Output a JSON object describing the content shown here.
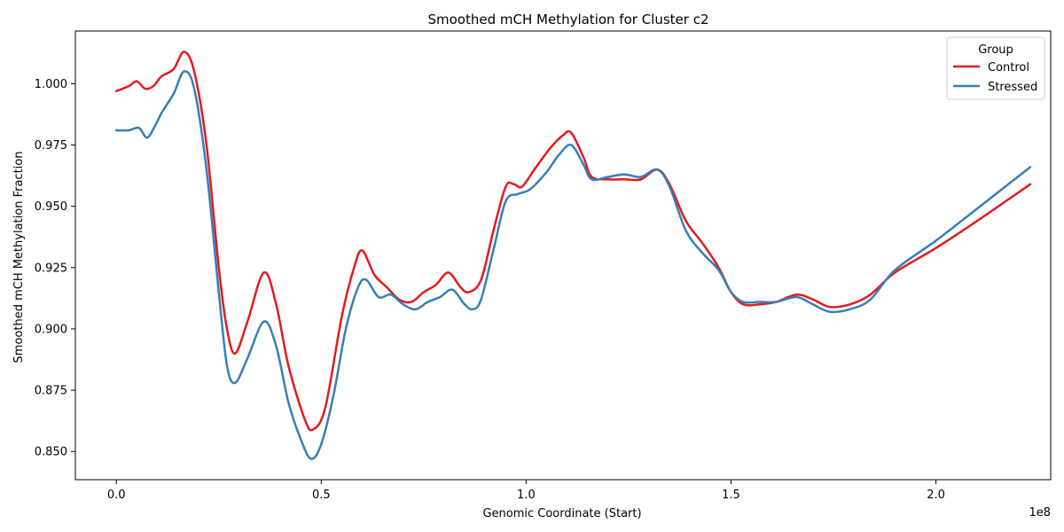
{
  "chart_data": {
    "type": "line",
    "title": "Smoothed mCH Methylation for Cluster c2",
    "xlabel": "Genomic Coordinate (Start)",
    "ylabel": "Smoothed mCH Methylation Fraction",
    "x_offset_label": "1e8",
    "xlim": [
      -0.1,
      2.28
    ],
    "ylim": [
      0.8385,
      1.0215
    ],
    "x_ticks": [
      0.0,
      0.5,
      1.0,
      1.5,
      2.0
    ],
    "x_tick_labels": [
      "0.0",
      "0.5",
      "1.0",
      "1.5",
      "2.0"
    ],
    "y_ticks": [
      0.85,
      0.875,
      0.9,
      0.925,
      0.95,
      0.975,
      1.0
    ],
    "y_tick_labels": [
      "0.850",
      "0.875",
      "0.900",
      "0.925",
      "0.950",
      "0.975",
      "1.000"
    ],
    "grid": false,
    "legend": {
      "title": "Group",
      "placement": "top-right"
    },
    "series": [
      {
        "name": "Control",
        "color": "#e41a1c",
        "points": [
          [
            0.0,
            0.997
          ],
          [
            0.03,
            0.999
          ],
          [
            0.05,
            1.001
          ],
          [
            0.07,
            0.998
          ],
          [
            0.09,
            0.999
          ],
          [
            0.11,
            1.003
          ],
          [
            0.14,
            1.006
          ],
          [
            0.165,
            1.013
          ],
          [
            0.19,
            1.005
          ],
          [
            0.22,
            0.975
          ],
          [
            0.25,
            0.925
          ],
          [
            0.27,
            0.9
          ],
          [
            0.29,
            0.89
          ],
          [
            0.32,
            0.903
          ],
          [
            0.36,
            0.923
          ],
          [
            0.39,
            0.91
          ],
          [
            0.42,
            0.885
          ],
          [
            0.46,
            0.863
          ],
          [
            0.48,
            0.859
          ],
          [
            0.51,
            0.868
          ],
          [
            0.55,
            0.905
          ],
          [
            0.58,
            0.925
          ],
          [
            0.6,
            0.932
          ],
          [
            0.63,
            0.922
          ],
          [
            0.66,
            0.917
          ],
          [
            0.69,
            0.912
          ],
          [
            0.72,
            0.911
          ],
          [
            0.75,
            0.915
          ],
          [
            0.78,
            0.918
          ],
          [
            0.81,
            0.923
          ],
          [
            0.84,
            0.917
          ],
          [
            0.86,
            0.915
          ],
          [
            0.89,
            0.92
          ],
          [
            0.92,
            0.94
          ],
          [
            0.95,
            0.958
          ],
          [
            0.97,
            0.959
          ],
          [
            0.99,
            0.958
          ],
          [
            1.02,
            0.965
          ],
          [
            1.06,
            0.974
          ],
          [
            1.09,
            0.979
          ],
          [
            1.11,
            0.98
          ],
          [
            1.14,
            0.97
          ],
          [
            1.16,
            0.962
          ],
          [
            1.2,
            0.961
          ],
          [
            1.24,
            0.961
          ],
          [
            1.28,
            0.961
          ],
          [
            1.32,
            0.965
          ],
          [
            1.35,
            0.959
          ],
          [
            1.39,
            0.944
          ],
          [
            1.43,
            0.935
          ],
          [
            1.47,
            0.925
          ],
          [
            1.5,
            0.915
          ],
          [
            1.53,
            0.91
          ],
          [
            1.57,
            0.91
          ],
          [
            1.61,
            0.911
          ],
          [
            1.66,
            0.914
          ],
          [
            1.7,
            0.912
          ],
          [
            1.74,
            0.909
          ],
          [
            1.79,
            0.91
          ],
          [
            1.84,
            0.914
          ],
          [
            1.9,
            0.923
          ],
          [
            2.0,
            0.933
          ],
          [
            2.1,
            0.944
          ],
          [
            2.23,
            0.959
          ]
        ]
      },
      {
        "name": "Stressed",
        "color": "#377eb8",
        "points": [
          [
            0.0,
            0.981
          ],
          [
            0.03,
            0.981
          ],
          [
            0.055,
            0.982
          ],
          [
            0.075,
            0.978
          ],
          [
            0.095,
            0.983
          ],
          [
            0.11,
            0.988
          ],
          [
            0.14,
            0.996
          ],
          [
            0.165,
            1.005
          ],
          [
            0.19,
            0.998
          ],
          [
            0.22,
            0.965
          ],
          [
            0.25,
            0.915
          ],
          [
            0.27,
            0.885
          ],
          [
            0.29,
            0.878
          ],
          [
            0.32,
            0.888
          ],
          [
            0.36,
            0.903
          ],
          [
            0.39,
            0.893
          ],
          [
            0.42,
            0.87
          ],
          [
            0.45,
            0.855
          ],
          [
            0.475,
            0.847
          ],
          [
            0.5,
            0.853
          ],
          [
            0.53,
            0.873
          ],
          [
            0.56,
            0.9
          ],
          [
            0.59,
            0.917
          ],
          [
            0.61,
            0.92
          ],
          [
            0.64,
            0.913
          ],
          [
            0.67,
            0.914
          ],
          [
            0.7,
            0.91
          ],
          [
            0.73,
            0.908
          ],
          [
            0.76,
            0.911
          ],
          [
            0.79,
            0.913
          ],
          [
            0.82,
            0.916
          ],
          [
            0.85,
            0.91
          ],
          [
            0.87,
            0.908
          ],
          [
            0.89,
            0.912
          ],
          [
            0.92,
            0.932
          ],
          [
            0.95,
            0.952
          ],
          [
            0.98,
            0.955
          ],
          [
            1.01,
            0.957
          ],
          [
            1.05,
            0.964
          ],
          [
            1.08,
            0.971
          ],
          [
            1.11,
            0.975
          ],
          [
            1.14,
            0.967
          ],
          [
            1.16,
            0.961
          ],
          [
            1.2,
            0.962
          ],
          [
            1.24,
            0.963
          ],
          [
            1.28,
            0.962
          ],
          [
            1.32,
            0.965
          ],
          [
            1.35,
            0.958
          ],
          [
            1.39,
            0.94
          ],
          [
            1.43,
            0.931
          ],
          [
            1.47,
            0.924
          ],
          [
            1.5,
            0.915
          ],
          [
            1.53,
            0.911
          ],
          [
            1.57,
            0.911
          ],
          [
            1.61,
            0.911
          ],
          [
            1.66,
            0.913
          ],
          [
            1.7,
            0.91
          ],
          [
            1.74,
            0.907
          ],
          [
            1.79,
            0.908
          ],
          [
            1.84,
            0.912
          ],
          [
            1.9,
            0.924
          ],
          [
            2.0,
            0.936
          ],
          [
            2.1,
            0.949
          ],
          [
            2.23,
            0.966
          ]
        ]
      }
    ]
  }
}
